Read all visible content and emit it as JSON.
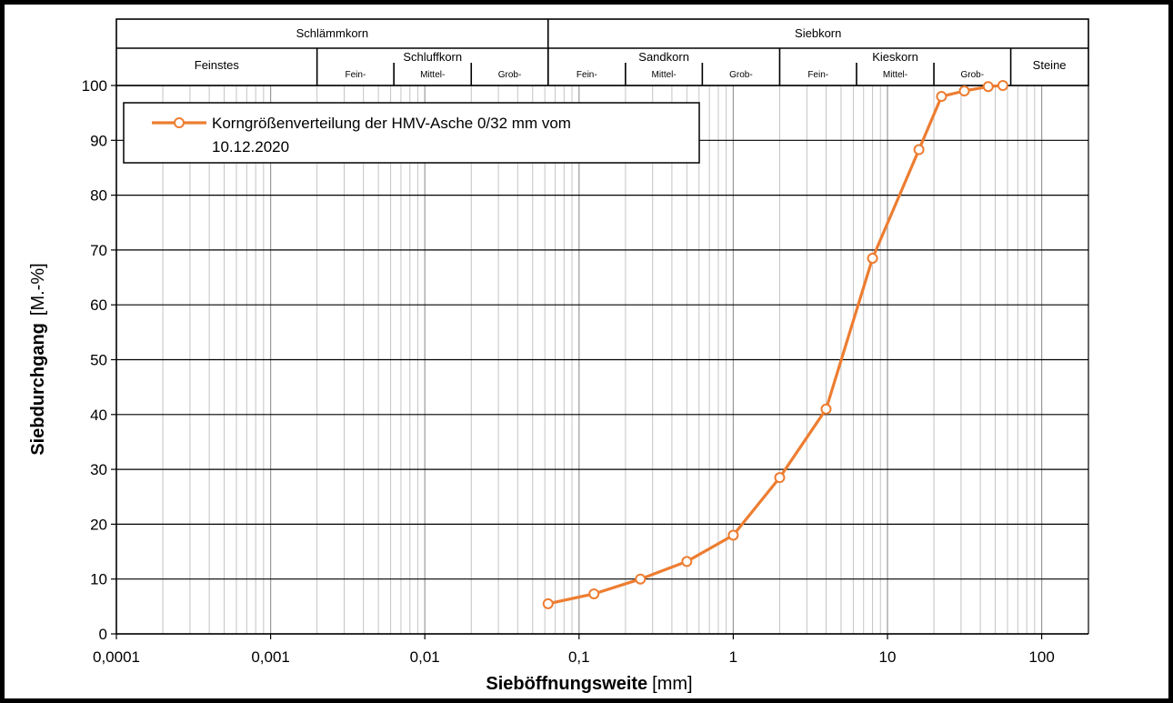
{
  "chart_data": {
    "type": "line",
    "xscale": "log",
    "xlim": [
      0.0001,
      200
    ],
    "ylim": [
      0,
      100
    ],
    "x_ticks": [
      "0,0001",
      "0,001",
      "0,01",
      "0,1",
      "1",
      "10",
      "100"
    ],
    "y_ticks": [
      "0",
      "10",
      "20",
      "30",
      "40",
      "50",
      "60",
      "70",
      "80",
      "90",
      "100"
    ],
    "xlabel": "Sieböffnungsweite",
    "xlabel_unit": "[mm]",
    "ylabel": "Siebdurchgang",
    "ylabel_unit": "[M.-%]",
    "grid": true,
    "legend_position": "top-left",
    "series": [
      {
        "name_line1": "Korngrößenverteilung der HMV-Asche 0/32 mm vom",
        "name_line2": "10.12.2020",
        "color": "#ED7D31",
        "x": [
          0.063,
          0.125,
          0.25,
          0.5,
          1,
          2,
          4,
          8,
          16,
          22.4,
          31.5,
          45,
          56
        ],
        "y": [
          5.5,
          7.3,
          10.0,
          13.2,
          18.0,
          28.5,
          41.0,
          68.5,
          88.3,
          98.0,
          99.0,
          99.8,
          100
        ]
      }
    ]
  },
  "header": {
    "top": [
      {
        "label": "Schlämmkorn",
        "from": 0.0001,
        "to": 0.063
      },
      {
        "label": "Siebkorn",
        "from": 0.063,
        "to": 200
      }
    ],
    "groups": [
      {
        "label": "Feinstes",
        "from": 0.0001,
        "to": 0.002,
        "subs": []
      },
      {
        "label": "Schluffkorn",
        "from": 0.002,
        "to": 0.063,
        "subs": [
          {
            "label": "Fein-",
            "from": 0.002,
            "to": 0.0063
          },
          {
            "label": "Mittel-",
            "from": 0.0063,
            "to": 0.02
          },
          {
            "label": "Grob-",
            "from": 0.02,
            "to": 0.063
          }
        ]
      },
      {
        "label": "Sandkorn",
        "from": 0.063,
        "to": 2,
        "subs": [
          {
            "label": "Fein-",
            "from": 0.063,
            "to": 0.2
          },
          {
            "label": "Mittel-",
            "from": 0.2,
            "to": 0.63
          },
          {
            "label": "Grob-",
            "from": 0.63,
            "to": 2
          }
        ]
      },
      {
        "label": "Kieskorn",
        "from": 2,
        "to": 63,
        "subs": [
          {
            "label": "Fein-",
            "from": 2,
            "to": 6.3
          },
          {
            "label": "Mittel-",
            "from": 6.3,
            "to": 20
          },
          {
            "label": "Grob-",
            "from": 20,
            "to": 63
          }
        ]
      },
      {
        "label": "Steine",
        "from": 63,
        "to": 200,
        "subs": []
      }
    ]
  }
}
